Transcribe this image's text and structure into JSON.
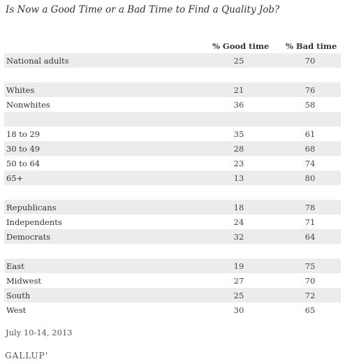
{
  "title": "Is Now a Good Time or a Bad Time to Find a Quality Job?",
  "chart_data": {
    "type": "table",
    "title": "Is Now a Good Time or a Bad Time to Find a Quality Job?",
    "columns": [
      "% Good time",
      "% Bad time"
    ],
    "rows": [
      {
        "label": "National adults",
        "good": "25",
        "bad": "70"
      },
      {
        "label": "",
        "good": "",
        "bad": ""
      },
      {
        "label": "Whites",
        "good": "21",
        "bad": "76"
      },
      {
        "label": "Nonwhites",
        "good": "36",
        "bad": "58"
      },
      {
        "label": "",
        "good": "",
        "bad": ""
      },
      {
        "label": "18 to 29",
        "good": "35",
        "bad": "61"
      },
      {
        "label": "30 to 49",
        "good": "28",
        "bad": "68"
      },
      {
        "label": "50 to 64",
        "good": "23",
        "bad": "74"
      },
      {
        "label": "65+",
        "good": "13",
        "bad": "80"
      },
      {
        "label": "",
        "good": "",
        "bad": ""
      },
      {
        "label": "Republicans",
        "good": "18",
        "bad": "78"
      },
      {
        "label": "Independents",
        "good": "24",
        "bad": "71"
      },
      {
        "label": "Democrats",
        "good": "32",
        "bad": "64"
      },
      {
        "label": "",
        "good": "",
        "bad": ""
      },
      {
        "label": "East",
        "good": "19",
        "bad": "75"
      },
      {
        "label": "Midwest",
        "good": "27",
        "bad": "70"
      },
      {
        "label": "South",
        "good": "25",
        "bad": "72"
      },
      {
        "label": "West",
        "good": "30",
        "bad": "65"
      }
    ]
  },
  "footer": {
    "date": "July 10-14, 2013",
    "logo": "GALLUP'"
  },
  "colors": {
    "shade": "#ececec",
    "text": "#333333"
  }
}
